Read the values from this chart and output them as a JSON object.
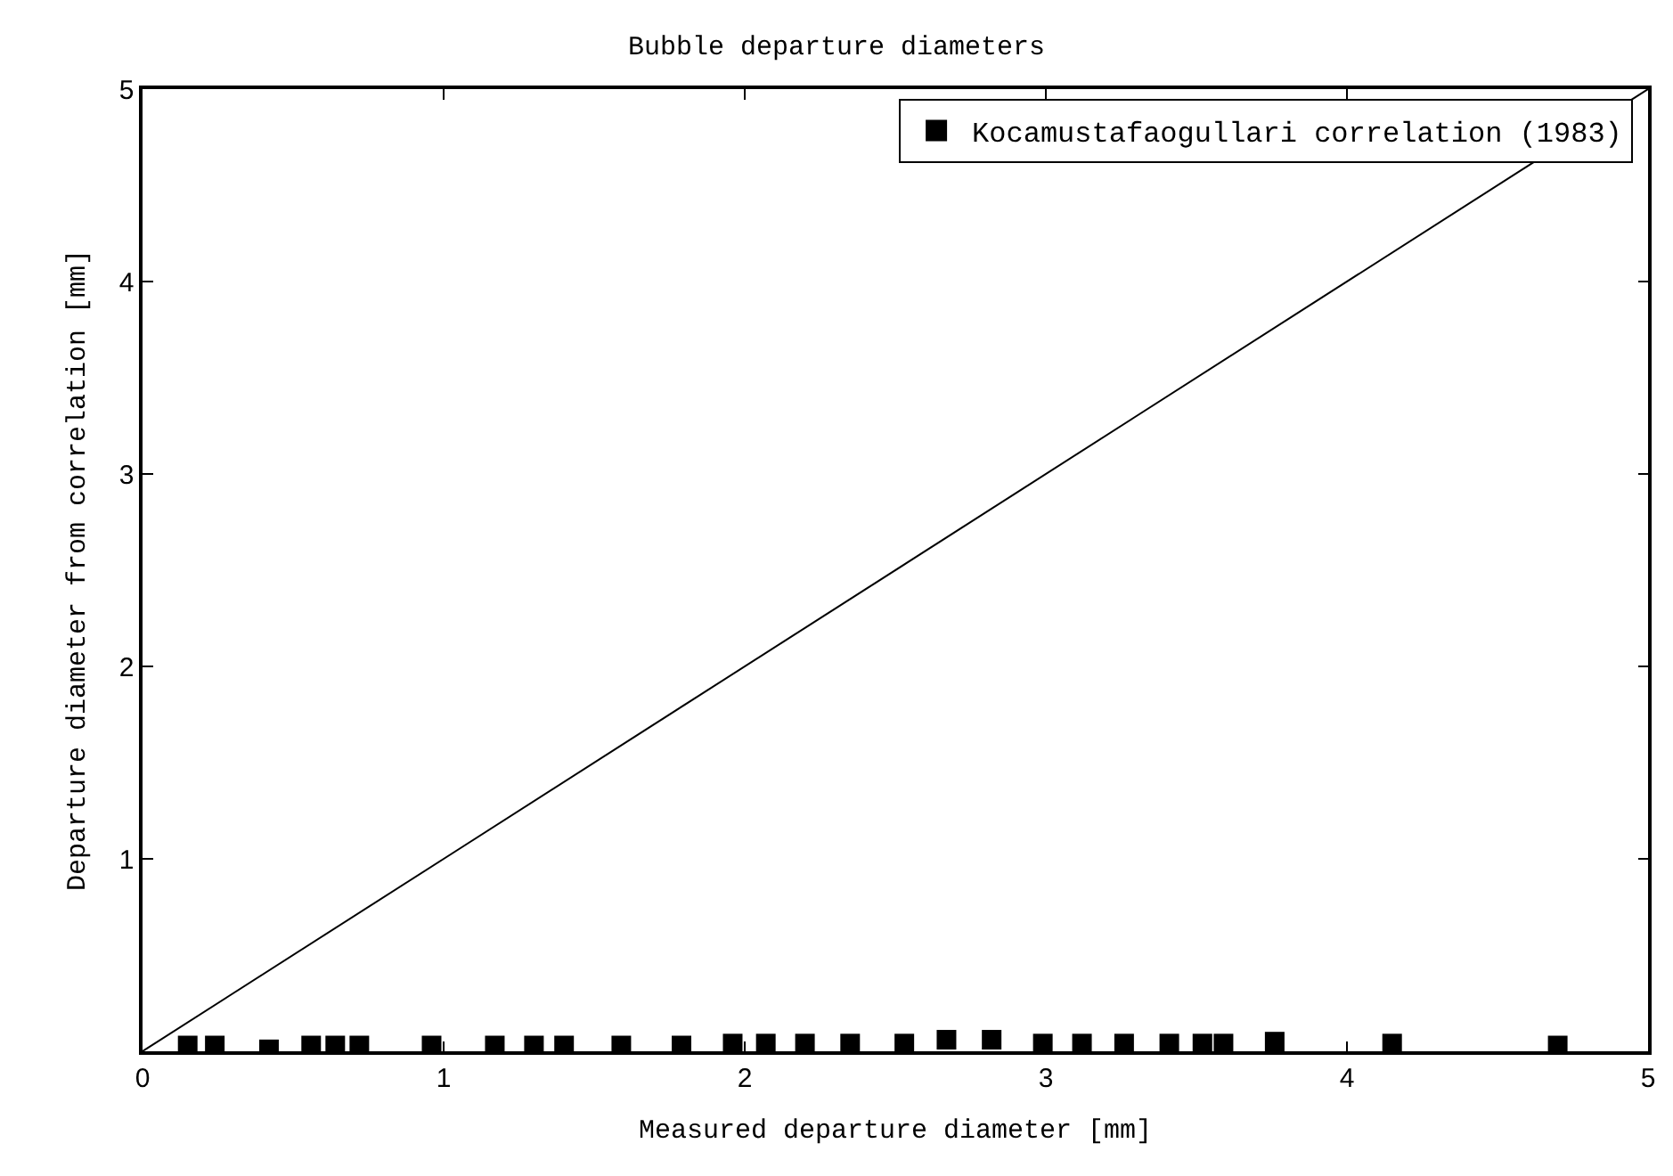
{
  "chart_data": {
    "type": "scatter",
    "title": "Bubble departure diameters",
    "xlabel": "Measured departure diameter [mm]",
    "ylabel": "Departure diameter from correlation [mm]",
    "xlim": [
      0,
      5
    ],
    "ylim": [
      0,
      5
    ],
    "xticks": [
      0,
      1,
      2,
      3,
      4,
      5
    ],
    "yticks": [
      {
        "value": 0,
        "label": null
      },
      1,
      2,
      3,
      4,
      5
    ],
    "legend": "top right",
    "marker": "square",
    "series": [
      {
        "name": "Kocamustafaogullari correlation (1983)",
        "color": "#000000",
        "x": [
          0.15,
          0.24,
          0.42,
          0.56,
          0.64,
          0.72,
          0.96,
          1.17,
          1.3,
          1.4,
          1.59,
          1.79,
          1.96,
          2.07,
          2.2,
          2.35,
          2.53,
          2.67,
          2.82,
          2.99,
          3.12,
          3.26,
          3.41,
          3.52,
          3.59,
          3.76,
          4.15,
          4.7
        ],
        "values": [
          0.03,
          0.03,
          0.01,
          0.03,
          0.03,
          0.03,
          0.03,
          0.03,
          0.03,
          0.03,
          0.03,
          0.03,
          0.04,
          0.04,
          0.04,
          0.04,
          0.04,
          0.06,
          0.06,
          0.04,
          0.04,
          0.04,
          0.04,
          0.04,
          0.04,
          0.05,
          0.04,
          0.03
        ]
      },
      {
        "type": "line",
        "color": "#000000",
        "x": [
          0,
          5
        ],
        "values": [
          0,
          5
        ],
        "marker": "none",
        "line_style": "solid"
      }
    ]
  }
}
